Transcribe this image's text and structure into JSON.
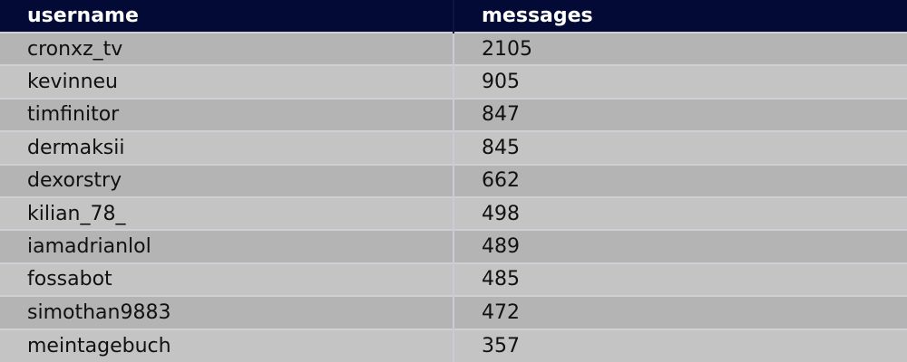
{
  "table": {
    "headers": [
      "username",
      "messages"
    ],
    "rows": [
      [
        "cronxz_tv",
        "2105"
      ],
      [
        "kevinneu",
        "905"
      ],
      [
        "timfinitor",
        "847"
      ],
      [
        "dermaksii",
        "845"
      ],
      [
        "dexorstry",
        "662"
      ],
      [
        "kilian_78_",
        "498"
      ],
      [
        "iamadrianlol",
        "489"
      ],
      [
        "fossabot",
        "485"
      ],
      [
        "simothan9883",
        "472"
      ],
      [
        "meintagebuch",
        "357"
      ]
    ]
  },
  "colors": {
    "header_bg": "#030a36",
    "row_odd": "#b4b4b4",
    "row_even": "#c4c4c4"
  }
}
